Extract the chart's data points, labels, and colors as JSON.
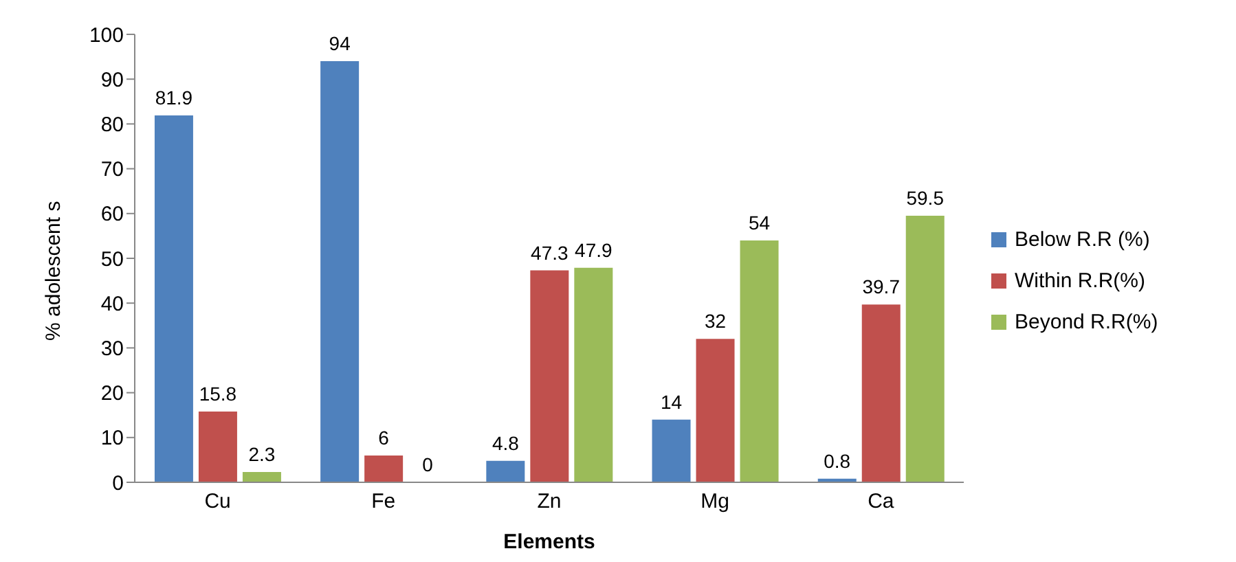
{
  "chart_data": {
    "type": "bar",
    "xlabel": "Elements",
    "ylabel": "% adolescent s",
    "categories": [
      "Cu",
      "Fe",
      "Zn",
      "Mg",
      "Ca"
    ],
    "series": [
      {
        "name": "Below R.R (%)",
        "color": "#4f81bd",
        "values": [
          81.9,
          94,
          4.8,
          14,
          0.8
        ]
      },
      {
        "name": "Within R.R(%)",
        "color": "#c0504d",
        "values": [
          15.8,
          6,
          47.3,
          32,
          39.7
        ]
      },
      {
        "name": "Beyond R.R(%)",
        "color": "#9bbb59",
        "values": [
          2.3,
          0,
          47.9,
          54,
          59.5
        ]
      }
    ],
    "ylim": [
      0,
      100
    ],
    "yticks": [
      0,
      10,
      20,
      30,
      40,
      50,
      60,
      70,
      80,
      90,
      100
    ],
    "data_labels": true,
    "legend": "right",
    "grid": false
  }
}
